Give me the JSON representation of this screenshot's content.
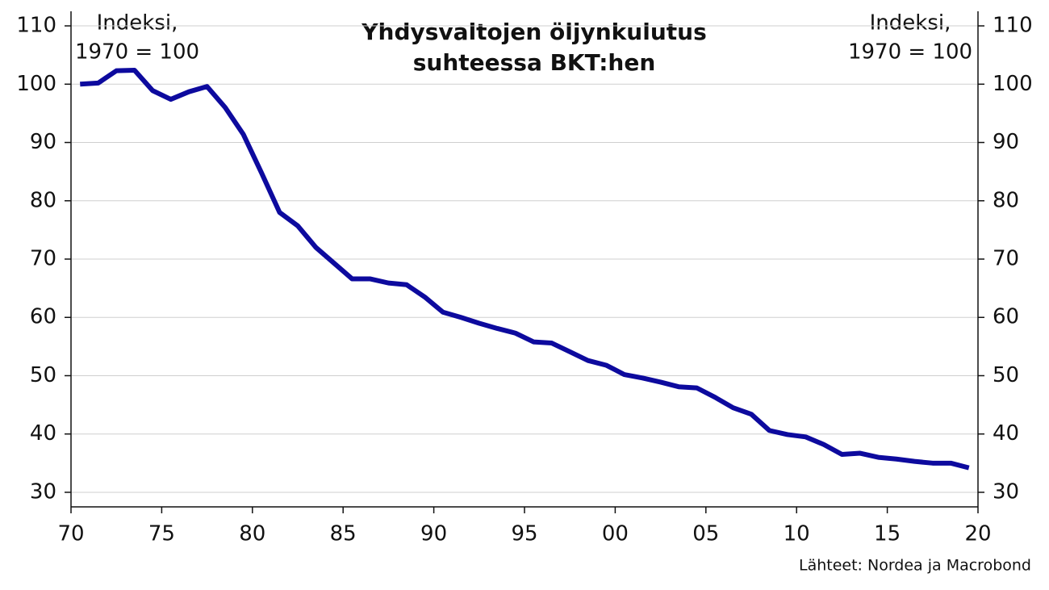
{
  "chart_data": {
    "type": "line",
    "title": [
      "Yhdysvaltojen öljynkulutus",
      "suhteessa BKT:hen"
    ],
    "y_label": [
      "Indeksi,",
      "1970 = 100"
    ],
    "y2_label": [
      "Indeksi,",
      "1970 = 100"
    ],
    "source": "Lähteet: Nordea ja Macrobond",
    "x": [
      1970.5,
      1971.5,
      1972.5,
      1973.5,
      1974.5,
      1975.5,
      1976.5,
      1977.5,
      1978.5,
      1979.5,
      1980.5,
      1981.5,
      1982.5,
      1983.5,
      1984.5,
      1985.5,
      1986.5,
      1987.5,
      1988.5,
      1989.5,
      1990.5,
      1991.5,
      1992.5,
      1993.5,
      1994.5,
      1995.5,
      1996.5,
      1997.5,
      1998.5,
      1999.5,
      2000.5,
      2001.5,
      2002.5,
      2003.5,
      2004.5,
      2005.5,
      2006.5,
      2007.5,
      2008.5,
      2009.5,
      2010.5,
      2011.5,
      2012.5,
      2013.5,
      2014.5,
      2015.5,
      2016.5,
      2017.5,
      2018.5,
      2019.5
    ],
    "series": [
      {
        "color": "#0d0a9e",
        "values": [
          100,
          100.2,
          102.3,
          102.4,
          98.9,
          97.4,
          98.7,
          99.6,
          96,
          91.4,
          84.8,
          78,
          75.7,
          72,
          69.3,
          66.6,
          66.6,
          65.9,
          65.6,
          63.5,
          60.9,
          60,
          59,
          58.1,
          57.3,
          55.8,
          55.6,
          54.1,
          52.6,
          51.8,
          50.2,
          49.6,
          48.9,
          48.1,
          47.9,
          46.3,
          44.5,
          43.4,
          40.6,
          39.9,
          39.5,
          38.2,
          36.5,
          36.7,
          36,
          35.7,
          35.3,
          35,
          35,
          34.2
        ]
      }
    ],
    "xlim": [
      1970,
      2020
    ],
    "xticks": [
      {
        "value": 1970,
        "label": "70"
      },
      {
        "value": 1975,
        "label": "75"
      },
      {
        "value": 1980,
        "label": "80"
      },
      {
        "value": 1985,
        "label": "85"
      },
      {
        "value": 1990,
        "label": "90"
      },
      {
        "value": 1995,
        "label": "95"
      },
      {
        "value": 2000,
        "label": "00"
      },
      {
        "value": 2005,
        "label": "05"
      },
      {
        "value": 2010,
        "label": "10"
      },
      {
        "value": 2015,
        "label": "15"
      },
      {
        "value": 2020,
        "label": "20"
      }
    ],
    "ylim": [
      27.5,
      112.5
    ],
    "yticks": [
      30,
      40,
      50,
      60,
      70,
      80,
      90,
      100,
      110
    ],
    "y2lim": [
      27.5,
      112.5
    ],
    "y2ticks": [
      30,
      40,
      50,
      60,
      70,
      80,
      90,
      100,
      110
    ],
    "grid": true
  }
}
